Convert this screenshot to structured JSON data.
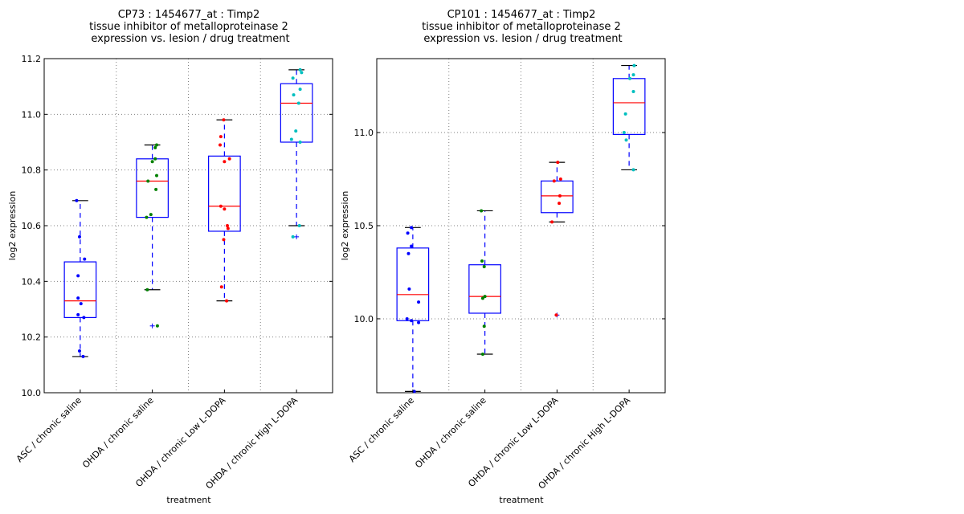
{
  "chart_data": [
    {
      "type": "box",
      "title_lines": [
        "CP73 : 1454677_at : Timp2",
        "tissue inhibitor of metalloproteinase 2",
        "expression vs. lesion / drug treatment"
      ],
      "xlabel": "treatment",
      "ylabel": "log2 expression",
      "ylim": [
        10.0,
        11.2
      ],
      "yticks": [
        10.0,
        10.2,
        10.4,
        10.6,
        10.8,
        11.0,
        11.2
      ],
      "ytick_labels": [
        "10.0",
        "10.2",
        "10.4",
        "10.6",
        "10.8",
        "11.0",
        "11.2"
      ],
      "grid": true,
      "categories": [
        "ASC / chronic saline",
        "OHDA / chronic saline",
        "OHDA / chronic Low L-DOPA",
        "OHDA / chronic High L-DOPA"
      ],
      "boxes": [
        {
          "q1": 10.27,
          "median": 10.33,
          "q3": 10.47,
          "whisker_low": 10.13,
          "whisker_high": 10.69,
          "outliers": [],
          "color": "#0000ff",
          "points": [
            [
              -0.05,
              10.69
            ],
            [
              -0.01,
              10.56
            ],
            [
              0.06,
              10.48
            ],
            [
              -0.03,
              10.42
            ],
            [
              -0.03,
              10.34
            ],
            [
              0.01,
              10.32
            ],
            [
              -0.03,
              10.28
            ],
            [
              0.05,
              10.27
            ],
            [
              -0.01,
              10.15
            ],
            [
              0.04,
              10.13
            ]
          ]
        },
        {
          "q1": 10.63,
          "median": 10.76,
          "q3": 10.84,
          "whisker_low": 10.37,
          "whisker_high": 10.89,
          "outliers": [
            10.24
          ],
          "color": "#008000",
          "points": [
            [
              0.06,
              10.89
            ],
            [
              0.04,
              10.88
            ],
            [
              0.04,
              10.84
            ],
            [
              0.0,
              10.83
            ],
            [
              0.06,
              10.78
            ],
            [
              -0.06,
              10.76
            ],
            [
              0.05,
              10.73
            ],
            [
              -0.02,
              10.64
            ],
            [
              -0.08,
              10.63
            ],
            [
              -0.07,
              10.37
            ],
            [
              0.07,
              10.24
            ]
          ]
        },
        {
          "q1": 10.58,
          "median": 10.67,
          "q3": 10.85,
          "whisker_low": 10.33,
          "whisker_high": 10.98,
          "outliers": [],
          "color": "#ff0000",
          "points": [
            [
              -0.01,
              10.98
            ],
            [
              -0.05,
              10.92
            ],
            [
              -0.06,
              10.89
            ],
            [
              0.07,
              10.84
            ],
            [
              0.0,
              10.83
            ],
            [
              -0.05,
              10.67
            ],
            [
              0.0,
              10.66
            ],
            [
              0.04,
              10.6
            ],
            [
              0.05,
              10.59
            ],
            [
              -0.01,
              10.55
            ],
            [
              -0.04,
              10.38
            ],
            [
              0.03,
              10.33
            ]
          ]
        },
        {
          "q1": 10.9,
          "median": 11.04,
          "q3": 11.11,
          "whisker_low": 10.6,
          "whisker_high": 11.16,
          "outliers": [
            10.56
          ],
          "color": "#00bfbf",
          "points": [
            [
              0.05,
              11.16
            ],
            [
              0.07,
              11.15
            ],
            [
              -0.05,
              11.13
            ],
            [
              0.05,
              11.09
            ],
            [
              -0.04,
              11.07
            ],
            [
              0.03,
              11.04
            ],
            [
              -0.01,
              10.94
            ],
            [
              -0.07,
              10.91
            ],
            [
              0.05,
              10.9
            ],
            [
              0.04,
              10.6
            ],
            [
              -0.05,
              10.56
            ]
          ]
        }
      ]
    },
    {
      "type": "box",
      "title_lines": [
        "CP101 : 1454677_at : Timp2",
        "tissue inhibitor of metalloproteinase 2",
        "expression vs. lesion / drug treatment"
      ],
      "xlabel": "treatment",
      "ylabel": "log2 expression",
      "ylim": [
        9.603,
        11.397
      ],
      "yticks": [
        10.0,
        10.5,
        11.0
      ],
      "ytick_labels": [
        "10.0",
        "10.5",
        "11.0"
      ],
      "grid": true,
      "categories": [
        "ASC / chronic saline",
        "OHDA / chronic saline",
        "OHDA / chronic Low L-DOPA",
        "OHDA / chronic High L-DOPA"
      ],
      "boxes": [
        {
          "q1": 9.99,
          "median": 10.13,
          "q3": 10.38,
          "whisker_low": 9.61,
          "whisker_high": 10.49,
          "outliers": [],
          "color": "#0000ff",
          "points": [
            [
              -0.02,
              10.49
            ],
            [
              -0.07,
              10.46
            ],
            [
              -0.02,
              10.39
            ],
            [
              -0.06,
              10.35
            ],
            [
              -0.05,
              10.16
            ],
            [
              0.08,
              10.09
            ],
            [
              -0.08,
              10.0
            ],
            [
              -0.02,
              9.99
            ],
            [
              0.08,
              9.98
            ],
            [
              0.02,
              9.61
            ]
          ]
        },
        {
          "q1": 10.03,
          "median": 10.12,
          "q3": 10.29,
          "whisker_low": 9.81,
          "whisker_high": 10.58,
          "outliers": [],
          "color": "#008000",
          "points": [
            [
              -0.05,
              10.58
            ],
            [
              -0.04,
              10.31
            ],
            [
              -0.01,
              10.28
            ],
            [
              0.0,
              10.12
            ],
            [
              -0.03,
              10.11
            ],
            [
              -0.01,
              9.96
            ],
            [
              -0.03,
              9.81
            ]
          ]
        },
        {
          "q1": 10.57,
          "median": 10.66,
          "q3": 10.74,
          "whisker_low": 10.52,
          "whisker_high": 10.84,
          "outliers": [
            10.02
          ],
          "color": "#ff0000",
          "points": [
            [
              0.01,
              10.84
            ],
            [
              -0.04,
              10.74
            ],
            [
              0.05,
              10.75
            ],
            [
              0.04,
              10.66
            ],
            [
              0.03,
              10.62
            ],
            [
              -0.07,
              10.52
            ],
            [
              -0.01,
              10.02
            ]
          ]
        },
        {
          "q1": 10.99,
          "median": 11.16,
          "q3": 11.29,
          "whisker_low": 10.8,
          "whisker_high": 11.36,
          "outliers": [],
          "color": "#00bfbf",
          "points": [
            [
              0.07,
              11.36
            ],
            [
              0.06,
              11.31
            ],
            [
              0.01,
              11.29
            ],
            [
              0.06,
              11.22
            ],
            [
              -0.05,
              11.1
            ],
            [
              -0.07,
              11.0
            ],
            [
              -0.04,
              10.96
            ],
            [
              0.06,
              10.8
            ]
          ]
        }
      ]
    }
  ]
}
